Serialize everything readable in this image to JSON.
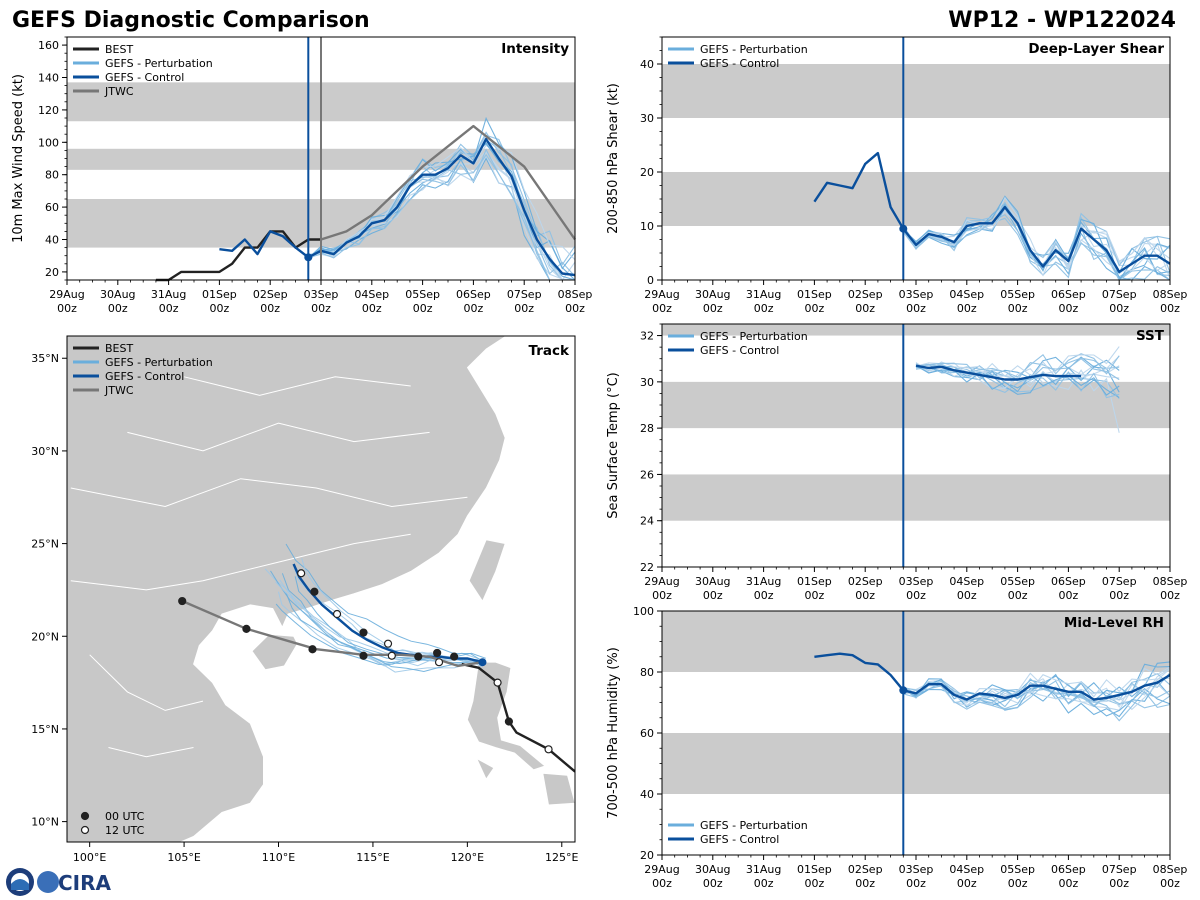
{
  "header": {
    "title": "GEFS Diagnostic Comparison",
    "storm_id": "WP12 - WP122024"
  },
  "logo": {
    "text": "CIRA"
  },
  "colors": {
    "best": "#222222",
    "perturbation": "#6aaedc",
    "control": "#0a4f9c",
    "jtwc": "#777777",
    "band": "#cbcbcb",
    "land": "#c8c8c8",
    "init_line": "#0a4f9c"
  },
  "time_axis": {
    "range_days": [
      0,
      10
    ],
    "ticks": [
      {
        "d": 0,
        "l1": "29Aug",
        "l2": "00z"
      },
      {
        "d": 1,
        "l1": "30Aug",
        "l2": "00z"
      },
      {
        "d": 2,
        "l1": "31Aug",
        "l2": "00z"
      },
      {
        "d": 3,
        "l1": "01Sep",
        "l2": "00z"
      },
      {
        "d": 4,
        "l1": "02Sep",
        "l2": "00z"
      },
      {
        "d": 5,
        "l1": "03Sep",
        "l2": "00z"
      },
      {
        "d": 6,
        "l1": "04Sep",
        "l2": "00z"
      },
      {
        "d": 7,
        "l1": "05Sep",
        "l2": "00z"
      },
      {
        "d": 8,
        "l1": "06Sep",
        "l2": "00z"
      },
      {
        "d": 9,
        "l1": "07Sep",
        "l2": "00z"
      },
      {
        "d": 10,
        "l1": "08Sep",
        "l2": "00z"
      }
    ],
    "init_time_days": 4.75,
    "jtwc_time_days": 5.0
  },
  "chart_data": [
    {
      "type": "line",
      "panel": "intensity",
      "title": "Intensity",
      "ylabel": "10m Max Wind Speed (kt)",
      "ylim": [
        15,
        165
      ],
      "yticks": [
        20,
        40,
        60,
        80,
        100,
        120,
        140,
        160
      ],
      "bands": [
        [
          35,
          65
        ],
        [
          83,
          96
        ],
        [
          113,
          137
        ]
      ],
      "legend": [
        "BEST",
        "GEFS - Perturbation",
        "GEFS - Control",
        "JTWC"
      ],
      "series": [
        {
          "name": "BEST",
          "x": [
            1.75,
            2.0,
            2.25,
            2.5,
            3.0,
            3.25,
            3.5,
            3.75,
            4.0,
            4.25,
            4.5,
            4.75,
            5.0
          ],
          "values": [
            15,
            15,
            20,
            20,
            20,
            25,
            35,
            35,
            45,
            45,
            35,
            40,
            40
          ]
        },
        {
          "name": "GEFS - Control",
          "x": [
            3.0,
            3.25,
            3.5,
            3.75,
            4.0,
            4.25,
            4.5,
            4.75,
            5.0,
            5.25,
            5.5,
            5.75,
            6.0,
            6.25,
            6.5,
            6.75,
            7.0,
            7.25,
            7.5,
            7.75,
            8.0,
            8.25,
            8.5,
            8.75,
            9.0,
            9.25,
            9.5,
            9.75,
            10.0
          ],
          "values": [
            34,
            33,
            40,
            31,
            45,
            42,
            35,
            29,
            33,
            31,
            38,
            42,
            50,
            52,
            60,
            73,
            80,
            80,
            84,
            92,
            87,
            102,
            90,
            79,
            58,
            40,
            28,
            19,
            18
          ]
        },
        {
          "name": "JTWC",
          "x": [
            5.0,
            5.5,
            6.0,
            7.0,
            8.0,
            9.0,
            10.0
          ],
          "values": [
            40,
            45,
            55,
            85,
            110,
            85,
            40
          ]
        }
      ],
      "perturbation_count": 14
    },
    {
      "type": "line",
      "panel": "shear",
      "title": "Deep-Layer Shear",
      "ylabel": "200-850 hPa Shear (kt)",
      "ylim": [
        0,
        45
      ],
      "yticks": [
        0,
        10,
        20,
        30,
        40
      ],
      "bands": [
        [
          10,
          20
        ],
        [
          30,
          40
        ]
      ],
      "legend": [
        "GEFS - Perturbation",
        "GEFS - Control"
      ],
      "series": [
        {
          "name": "GEFS - Control",
          "x": [
            3.0,
            3.25,
            3.5,
            3.75,
            4.0,
            4.25,
            4.5,
            4.75,
            5.0,
            5.25,
            5.5,
            5.75,
            6.0,
            6.25,
            6.5,
            6.75,
            7.0,
            7.25,
            7.5,
            7.75,
            8.0,
            8.25,
            8.5,
            8.75,
            9.0,
            9.25,
            9.5,
            9.75,
            10.0
          ],
          "values": [
            14.5,
            18,
            17.5,
            17,
            21.5,
            23.5,
            13.5,
            9.5,
            6.5,
            8.5,
            8,
            7,
            10,
            10.5,
            10.5,
            13.5,
            10.5,
            5.5,
            2.5,
            5.5,
            3.5,
            9.5,
            7.5,
            5.5,
            1.5,
            3,
            4.5,
            4.5,
            3
          ]
        }
      ],
      "perturbation_count": 14
    },
    {
      "type": "line",
      "panel": "sst",
      "title": "SST",
      "ylabel": "Sea Surface Temp (°C)",
      "ylim": [
        22,
        32.5
      ],
      "yticks": [
        22,
        24,
        26,
        28,
        30,
        32
      ],
      "bands": [
        [
          24,
          26
        ],
        [
          28,
          30
        ],
        [
          32,
          32.5
        ]
      ],
      "legend": [
        "GEFS - Perturbation",
        "GEFS - Control"
      ],
      "series": [
        {
          "name": "GEFS - Control",
          "x": [
            5.0,
            5.25,
            5.5,
            5.75,
            6.0,
            6.25,
            6.5,
            6.75,
            7.0,
            7.25,
            7.5,
            7.75,
            8.0,
            8.25
          ],
          "values": [
            30.7,
            30.6,
            30.65,
            30.5,
            30.4,
            30.3,
            30.2,
            30.1,
            30.1,
            30.2,
            30.3,
            30.25,
            30.25,
            30.25
          ]
        }
      ],
      "perturbation_count": 14
    },
    {
      "type": "line",
      "panel": "rh",
      "title": "Mid-Level RH",
      "ylabel": "700-500 hPa Humidity (%)",
      "ylim": [
        20,
        100
      ],
      "yticks": [
        20,
        40,
        60,
        80,
        100
      ],
      "bands": [
        [
          40,
          60
        ],
        [
          80,
          100
        ]
      ],
      "legend": [
        "GEFS - Perturbation",
        "GEFS - Control"
      ],
      "series": [
        {
          "name": "GEFS - Control",
          "x": [
            3.0,
            3.25,
            3.5,
            3.75,
            4.0,
            4.25,
            4.5,
            4.75,
            5.0,
            5.25,
            5.5,
            5.75,
            6.0,
            6.25,
            6.5,
            6.75,
            7.0,
            7.25,
            7.5,
            7.75,
            8.0,
            8.25,
            8.5,
            8.75,
            9.0,
            9.25,
            9.5,
            9.75,
            10.0
          ],
          "values": [
            85,
            85.5,
            86,
            85.5,
            83,
            82.5,
            79,
            74,
            73,
            76,
            76,
            72.5,
            71,
            73,
            72.5,
            71.5,
            72.5,
            75.5,
            75.5,
            74.5,
            73.5,
            73.5,
            71,
            71.5,
            72.5,
            73.5,
            75.5,
            76.5,
            79
          ]
        }
      ],
      "perturbation_count": 14
    },
    {
      "type": "scatter",
      "panel": "track",
      "title": "Track",
      "xlim": [
        98.8,
        125.7
      ],
      "ylim": [
        8.9,
        36.2
      ],
      "xticks": [
        {
          "v": 100,
          "l": "100°E"
        },
        {
          "v": 105,
          "l": "105°E"
        },
        {
          "v": 110,
          "l": "110°E"
        },
        {
          "v": 115,
          "l": "115°E"
        },
        {
          "v": 120,
          "l": "120°E"
        },
        {
          "v": 125,
          "l": "125°E"
        }
      ],
      "yticks": [
        {
          "v": 10,
          "l": "10°N"
        },
        {
          "v": 15,
          "l": "15°N"
        },
        {
          "v": 20,
          "l": "20°N"
        },
        {
          "v": 25,
          "l": "25°N"
        },
        {
          "v": 30,
          "l": "30°N"
        },
        {
          "v": 35,
          "l": "35°N"
        }
      ],
      "legend": [
        "BEST",
        "GEFS - Perturbation",
        "GEFS - Control",
        "JTWC"
      ],
      "markers_legend": [
        "00 UTC",
        "12 UTC"
      ],
      "series": [
        {
          "name": "BEST",
          "lon": [
            125.7,
            124.3,
            122.6,
            122.2,
            121.6,
            120.6,
            119.7
          ],
          "lat": [
            12.7,
            13.9,
            14.8,
            15.4,
            17.5,
            18.3,
            18.5
          ]
        },
        {
          "name": "GEFS - Control",
          "lon": [
            120.8,
            120.0,
            119.3,
            118.5,
            117.8,
            117.0,
            116.3,
            115.5,
            114.7,
            113.9,
            113.1,
            112.3,
            111.6,
            111.1,
            110.8
          ],
          "lat": [
            18.6,
            18.8,
            18.8,
            18.9,
            18.9,
            19.0,
            19.1,
            19.4,
            19.8,
            20.3,
            21.0,
            21.7,
            22.5,
            23.2,
            23.9
          ]
        },
        {
          "name": "JTWC",
          "lon": [
            120.8,
            119.5,
            118.0,
            116.5,
            114.5,
            112.0,
            108.3,
            104.9
          ],
          "lat": [
            18.6,
            18.4,
            18.9,
            19.0,
            19.0,
            19.3,
            20.4,
            21.9
          ]
        }
      ],
      "best_points": [
        {
          "lon": 122.2,
          "lat": 15.4,
          "t": "00"
        },
        {
          "lon": 121.6,
          "lat": 17.5,
          "t": "12"
        },
        {
          "lon": 124.3,
          "lat": 13.9,
          "t": "12"
        }
      ],
      "control_points": [
        {
          "lon": 119.3,
          "lat": 18.9,
          "t": "00"
        },
        {
          "lon": 118.5,
          "lat": 18.6,
          "t": "12"
        },
        {
          "lon": 117.4,
          "lat": 18.9,
          "t": "00"
        },
        {
          "lon": 115.8,
          "lat": 19.6,
          "t": "12"
        },
        {
          "lon": 114.5,
          "lat": 20.2,
          "t": "00"
        },
        {
          "lon": 113.1,
          "lat": 21.2,
          "t": "12"
        },
        {
          "lon": 111.9,
          "lat": 22.4,
          "t": "00"
        },
        {
          "lon": 111.2,
          "lat": 23.4,
          "t": "12"
        }
      ],
      "jtwc_points": [
        {
          "lon": 118.4,
          "lat": 19.1,
          "t": "00"
        },
        {
          "lon": 116.0,
          "lat": 18.95,
          "t": "12"
        },
        {
          "lon": 114.5,
          "lat": 18.95,
          "t": "00"
        },
        {
          "lon": 111.8,
          "lat": 19.3,
          "t": "00"
        },
        {
          "lon": 108.3,
          "lat": 20.4,
          "t": "00"
        },
        {
          "lon": 104.9,
          "lat": 21.9,
          "t": "00"
        }
      ],
      "perturbation_count": 12
    }
  ]
}
